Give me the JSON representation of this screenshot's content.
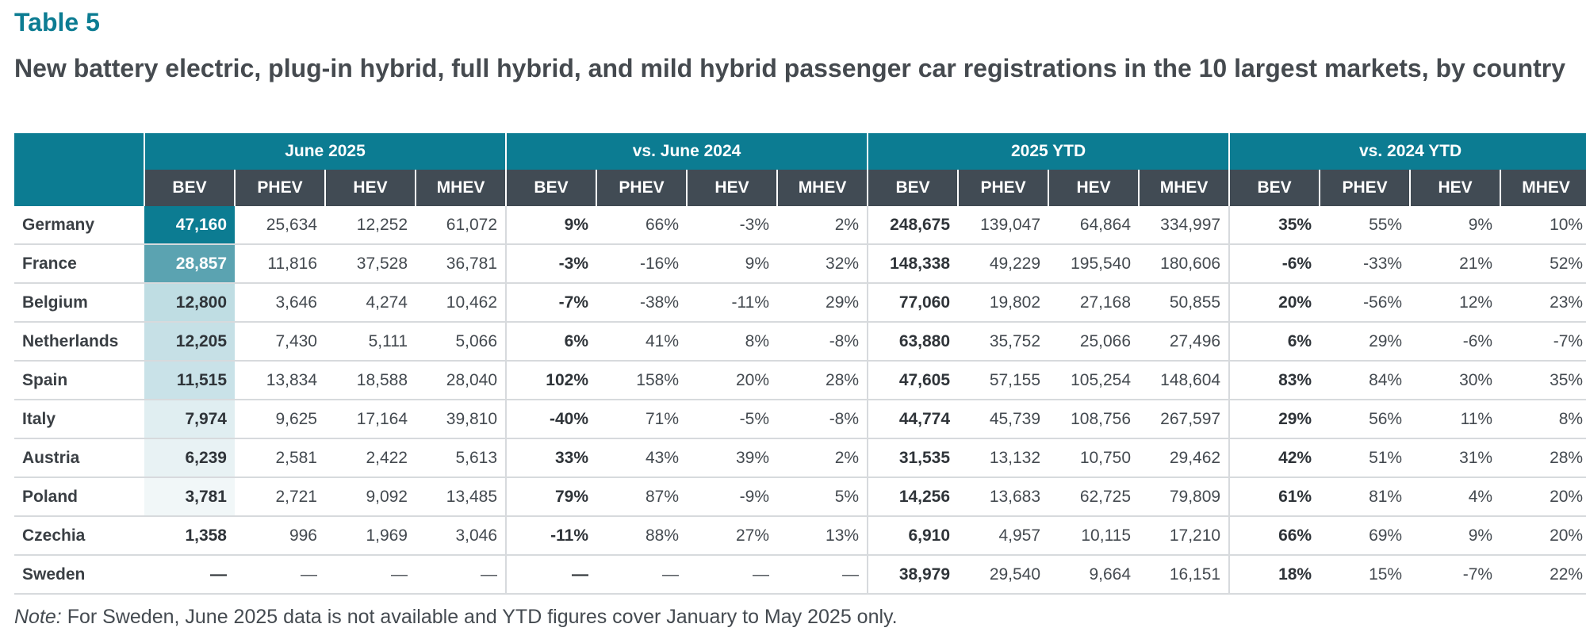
{
  "table_label": "Table 5",
  "title": "New battery electric, plug-in hybrid, full hybrid, and mild hybrid passenger car registrations in the 10 largest markets, by country",
  "column_groups": [
    "June 2025",
    "vs. June 2024",
    "2025 YTD",
    "vs. 2024 YTD"
  ],
  "subcolumns": [
    "BEV",
    "PHEV",
    "HEV",
    "MHEV"
  ],
  "colors": {
    "header_teal": "#0c7c92",
    "header_dark": "#414b54",
    "heat_scale": [
      "#0c7c92",
      "#5ba3b1",
      "#bfdde3",
      "#c6e0e6",
      "#c9e2e8",
      "#e0eef1",
      "#e8f2f4",
      "#f1f7f8",
      "#ffffff"
    ]
  },
  "rows": [
    {
      "country": "Germany",
      "june": [
        "47,160",
        "25,634",
        "12,252",
        "61,072"
      ],
      "vs_june": [
        "9%",
        "66%",
        "-3%",
        "2%"
      ],
      "ytd": [
        "248,675",
        "139,047",
        "64,864",
        "334,997"
      ],
      "vs_ytd": [
        "35%",
        "55%",
        "9%",
        "10%"
      ]
    },
    {
      "country": "France",
      "june": [
        "28,857",
        "11,816",
        "37,528",
        "36,781"
      ],
      "vs_june": [
        "-3%",
        "-16%",
        "9%",
        "32%"
      ],
      "ytd": [
        "148,338",
        "49,229",
        "195,540",
        "180,606"
      ],
      "vs_ytd": [
        "-6%",
        "-33%",
        "21%",
        "52%"
      ]
    },
    {
      "country": "Belgium",
      "june": [
        "12,800",
        "3,646",
        "4,274",
        "10,462"
      ],
      "vs_june": [
        "-7%",
        "-38%",
        "-11%",
        "29%"
      ],
      "ytd": [
        "77,060",
        "19,802",
        "27,168",
        "50,855"
      ],
      "vs_ytd": [
        "20%",
        "-56%",
        "12%",
        "23%"
      ]
    },
    {
      "country": "Netherlands",
      "june": [
        "12,205",
        "7,430",
        "5,111",
        "5,066"
      ],
      "vs_june": [
        "6%",
        "41%",
        "8%",
        "-8%"
      ],
      "ytd": [
        "63,880",
        "35,752",
        "25,066",
        "27,496"
      ],
      "vs_ytd": [
        "6%",
        "29%",
        "-6%",
        "-7%"
      ]
    },
    {
      "country": "Spain",
      "june": [
        "11,515",
        "13,834",
        "18,588",
        "28,040"
      ],
      "vs_june": [
        "102%",
        "158%",
        "20%",
        "28%"
      ],
      "ytd": [
        "47,605",
        "57,155",
        "105,254",
        "148,604"
      ],
      "vs_ytd": [
        "83%",
        "84%",
        "30%",
        "35%"
      ]
    },
    {
      "country": "Italy",
      "june": [
        "7,974",
        "9,625",
        "17,164",
        "39,810"
      ],
      "vs_june": [
        "-40%",
        "71%",
        "-5%",
        "-8%"
      ],
      "ytd": [
        "44,774",
        "45,739",
        "108,756",
        "267,597"
      ],
      "vs_ytd": [
        "29%",
        "56%",
        "11%",
        "8%"
      ]
    },
    {
      "country": "Austria",
      "june": [
        "6,239",
        "2,581",
        "2,422",
        "5,613"
      ],
      "vs_june": [
        "33%",
        "43%",
        "39%",
        "2%"
      ],
      "ytd": [
        "31,535",
        "13,132",
        "10,750",
        "29,462"
      ],
      "vs_ytd": [
        "42%",
        "51%",
        "31%",
        "28%"
      ]
    },
    {
      "country": "Poland",
      "june": [
        "3,781",
        "2,721",
        "9,092",
        "13,485"
      ],
      "vs_june": [
        "79%",
        "87%",
        "-9%",
        "5%"
      ],
      "ytd": [
        "14,256",
        "13,683",
        "62,725",
        "79,809"
      ],
      "vs_ytd": [
        "61%",
        "81%",
        "4%",
        "20%"
      ]
    },
    {
      "country": "Czechia",
      "june": [
        "1,358",
        "996",
        "1,969",
        "3,046"
      ],
      "vs_june": [
        "-11%",
        "88%",
        "27%",
        "13%"
      ],
      "ytd": [
        "6,910",
        "4,957",
        "10,115",
        "17,210"
      ],
      "vs_ytd": [
        "66%",
        "69%",
        "9%",
        "20%"
      ]
    },
    {
      "country": "Sweden",
      "june": [
        "—",
        "—",
        "—",
        "—"
      ],
      "vs_june": [
        "—",
        "—",
        "—",
        "—"
      ],
      "ytd": [
        "38,979",
        "29,540",
        "9,664",
        "16,151"
      ],
      "vs_ytd": [
        "18%",
        "15%",
        "-7%",
        "22%"
      ]
    }
  ],
  "note": {
    "label": "Note:",
    "text": " For Sweden, June 2025 data is not available and YTD figures cover January to May 2025 only."
  }
}
